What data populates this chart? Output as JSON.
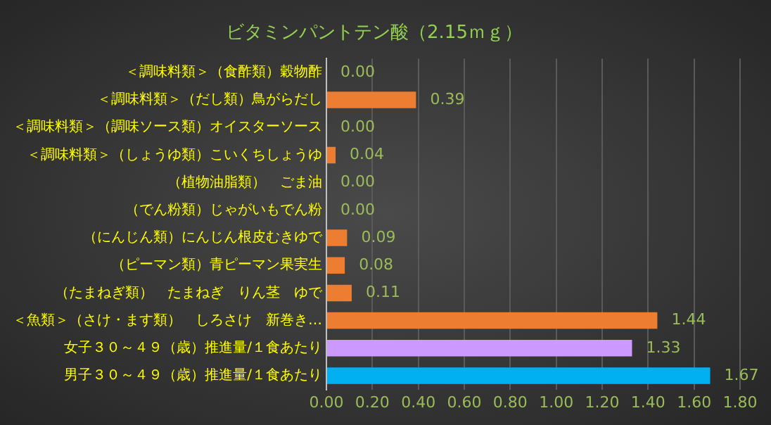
{
  "chart_data": {
    "type": "bar",
    "orientation": "horizontal",
    "title": "ビタミンパントテン酸（2.15ｍｇ）",
    "categories": [
      "＜調味料類＞（食酢類）穀物酢",
      "＜調味料類＞（だし類）鳥がらだし",
      "＜調味料類＞（調味ソース類）オイスターソース",
      "＜調味料類＞（しょうゆ類）こいくちしょうゆ",
      "（植物油脂類）　ごま油",
      "（でん粉類）じゃがいもでん粉",
      "（にんじん類）にんじん根皮むきゆで",
      "（ピーマン類）青ピーマン果実生",
      "（たまねぎ類）　たまねぎ　りん茎　ゆで",
      "＜魚類＞（さけ・ます類）　しろさけ　新巻き…",
      "女子３０～４９（歳）推進量/１食あたり",
      "男子３０～４９（歳）推進量/１食あたり"
    ],
    "values": [
      0,
      0.39,
      0,
      0.04,
      0,
      0,
      0.09,
      0.08,
      0.11,
      1.44,
      1.33,
      1.67
    ],
    "colors": [
      "#ed7d31",
      "#ed7d31",
      "#ed7d31",
      "#ed7d31",
      "#ed7d31",
      "#ed7d31",
      "#ed7d31",
      "#ed7d31",
      "#ed7d31",
      "#ed7d31",
      "#cc99ff",
      "#00b0f0"
    ],
    "value_labels": [
      "0.00",
      "0.39",
      "0.00",
      "0.04",
      "0.00",
      "0.00",
      "0.09",
      "0.08",
      "0.11",
      "1.44",
      "1.33",
      "1.67"
    ],
    "xlim": [
      0,
      1.8
    ],
    "xticks": [
      {
        "value": 0,
        "label": "0.00"
      },
      {
        "value": 0.2,
        "label": "0.20"
      },
      {
        "value": 0.4,
        "label": "0.40"
      },
      {
        "value": 0.6,
        "label": "0.60"
      },
      {
        "value": 0.8,
        "label": "0.80"
      },
      {
        "value": 1,
        "label": "1.00"
      },
      {
        "value": 1.2,
        "label": "1.20"
      },
      {
        "value": 1.4,
        "label": "1.40"
      },
      {
        "value": 1.6,
        "label": "1.60"
      },
      {
        "value": 1.8,
        "label": "1.80"
      }
    ],
    "grid": "x",
    "legend": false
  }
}
